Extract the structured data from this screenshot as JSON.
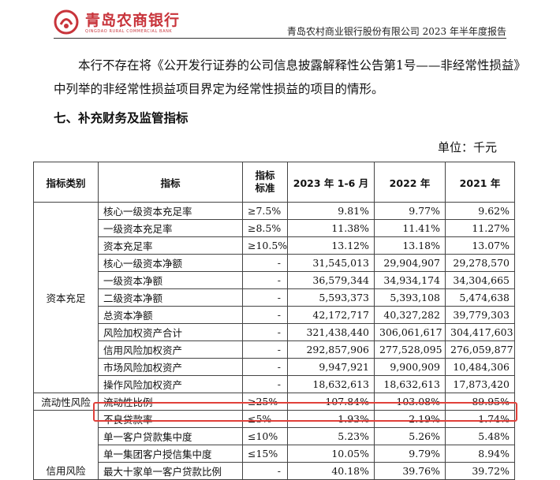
{
  "header": {
    "logo_cn": "青岛农商银行",
    "logo_en": "QINGDAO RURAL COMMERCIAL BANK",
    "report_title": "青岛农村商业银行股份有限公司 2023 年半年度报告"
  },
  "body": {
    "paragraph_line1": "本行不存在将《公开发行证券的公司信息披露解释性公告第1号——非经常性损益》",
    "paragraph_line2": "中列举的非经常性损益项目界定为经常性损益的项目的情形。",
    "section_title": "七、补充财务及监管指标",
    "unit": "单位：千元"
  },
  "table": {
    "headers": [
      "指标类别",
      "指标",
      "指标\n标准",
      "2023 年 1-6 月",
      "2022 年",
      "2021 年"
    ],
    "categories": {
      "capital": "资本充足",
      "liquidity": "流动性风险",
      "credit": "信用风险"
    },
    "rows": [
      {
        "indicator": "核心一级资本充足率",
        "standard": "≥7.5%",
        "v2023": "9.81%",
        "v2022": "9.77%",
        "v2021": "9.62%"
      },
      {
        "indicator": "一级资本充足率",
        "standard": "≥8.5%",
        "v2023": "11.38%",
        "v2022": "11.41%",
        "v2021": "11.27%"
      },
      {
        "indicator": "资本充足率",
        "standard": "≥10.5%",
        "v2023": "13.12%",
        "v2022": "13.18%",
        "v2021": "13.07%"
      },
      {
        "indicator": "核心一级资本净额",
        "standard": "-",
        "v2023": "31,545,013",
        "v2022": "29,904,907",
        "v2021": "29,278,570"
      },
      {
        "indicator": "一级资本净额",
        "standard": "-",
        "v2023": "36,579,344",
        "v2022": "34,934,174",
        "v2021": "34,304,665"
      },
      {
        "indicator": "二级资本净额",
        "standard": "-",
        "v2023": "5,593,373",
        "v2022": "5,393,108",
        "v2021": "5,474,638"
      },
      {
        "indicator": "总资本净额",
        "standard": "-",
        "v2023": "42,172,717",
        "v2022": "40,327,282",
        "v2021": "39,779,303"
      },
      {
        "indicator": "风险加权资产合计",
        "standard": "-",
        "v2023": "321,438,440",
        "v2022": "306,061,617",
        "v2021": "304,417,603"
      },
      {
        "indicator": "信用风险加权资产",
        "standard": "-",
        "v2023": "292,857,906",
        "v2022": "277,528,095",
        "v2021": "276,059,877"
      },
      {
        "indicator": "市场风险加权资产",
        "standard": "-",
        "v2023": "9,947,921",
        "v2022": "9,900,909",
        "v2021": "10,484,306"
      },
      {
        "indicator": "操作风险加权资产",
        "standard": "-",
        "v2023": "18,632,613",
        "v2022": "18,632,613",
        "v2021": "17,873,420"
      },
      {
        "indicator": "流动性比例",
        "standard": "≥25%",
        "v2023": "107.84%",
        "v2022": "103.08%",
        "v2021": "89.95%"
      },
      {
        "indicator": "不良贷款率",
        "standard": "≤5%",
        "v2023": "1.93%",
        "v2022": "2.19%",
        "v2021": "1.74%"
      },
      {
        "indicator": "单一客户贷款集中度",
        "standard": "≤10%",
        "v2023": "5.23%",
        "v2022": "5.26%",
        "v2021": "5.48%"
      },
      {
        "indicator": "单一集团客户授信集中度",
        "standard": "≤15%",
        "v2023": "10.05%",
        "v2022": "9.79%",
        "v2021": "8.94%"
      },
      {
        "indicator": "最大十家单一客户贷款比例",
        "standard": "-",
        "v2023": "40.18%",
        "v2022": "39.76%",
        "v2021": "39.72%"
      }
    ]
  },
  "colors": {
    "brand_red": "#c8343b",
    "highlight": "#e0403a"
  }
}
